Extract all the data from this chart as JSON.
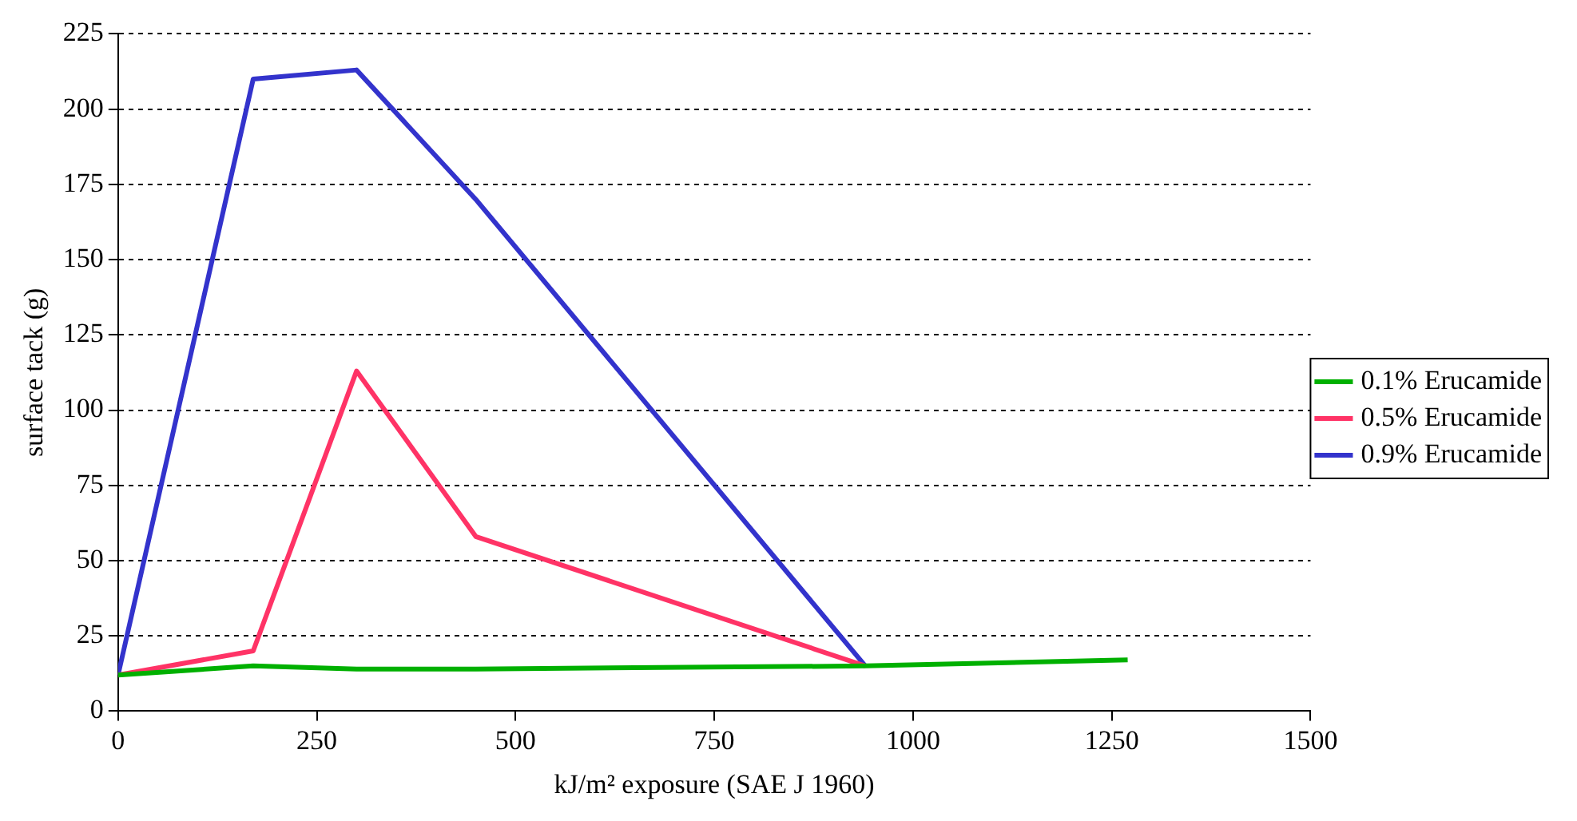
{
  "chart_data": {
    "type": "line",
    "xlabel": "kJ/m² exposure (SAE J 1960)",
    "ylabel": "surface tack (g)",
    "x": [
      0,
      170,
      300,
      450,
      940,
      1270
    ],
    "series": [
      {
        "name": "0.1% Erucamide",
        "color": "#00b000",
        "values": [
          12,
          15,
          14,
          14,
          15,
          17
        ]
      },
      {
        "name": "0.5% Erucamide",
        "color": "#ff3366",
        "x": [
          0,
          170,
          300,
          450,
          940
        ],
        "values": [
          12,
          20,
          113,
          58,
          15
        ]
      },
      {
        "name": "0.9% Erucamide",
        "color": "#3333cc",
        "x": [
          0,
          170,
          300,
          450,
          940
        ],
        "values": [
          12,
          210,
          213,
          170,
          15
        ]
      }
    ],
    "xlim": [
      0,
      1500
    ],
    "xticks": [
      0,
      250,
      500,
      750,
      1000,
      1250,
      1500
    ],
    "ylim": [
      0,
      225
    ],
    "yticks": [
      0,
      25,
      50,
      75,
      100,
      125,
      150,
      175,
      200,
      225
    ],
    "grid": "y",
    "legend": "right",
    "marker": "none",
    "line_style": "solid"
  }
}
